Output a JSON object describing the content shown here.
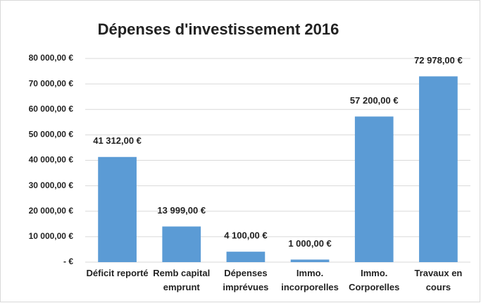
{
  "chart_data": {
    "type": "bar",
    "title": "Dépenses d'investissement 2016",
    "categories": [
      "Déficit reporté",
      "Remb capital emprunt",
      "Dépenses imprévues",
      "Immo. incorporelles",
      "Immo. Corporelles",
      "Travaux en cours"
    ],
    "values": [
      41312,
      13999,
      4100,
      1000,
      57200,
      72978
    ],
    "value_labels": [
      "41 312,00 €",
      "13 999,00 €",
      "4 100,00 €",
      "1 000,00 €",
      "57 200,00 €",
      "72 978,00 €"
    ],
    "color": "#5b9bd5",
    "ylim": [
      0,
      80000
    ],
    "yticks": [
      {
        "value": 0,
        "label": "-   €"
      },
      {
        "value": 10000,
        "label": "10 000,00 €"
      },
      {
        "value": 20000,
        "label": "20 000,00 €"
      },
      {
        "value": 30000,
        "label": "30 000,00 €"
      },
      {
        "value": 40000,
        "label": "40 000,00 €"
      },
      {
        "value": 50000,
        "label": "50 000,00 €"
      },
      {
        "value": 60000,
        "label": "60 000,00 €"
      },
      {
        "value": 70000,
        "label": "70 000,00 €"
      },
      {
        "value": 80000,
        "label": "80 000,00 €"
      }
    ],
    "grid": true
  }
}
